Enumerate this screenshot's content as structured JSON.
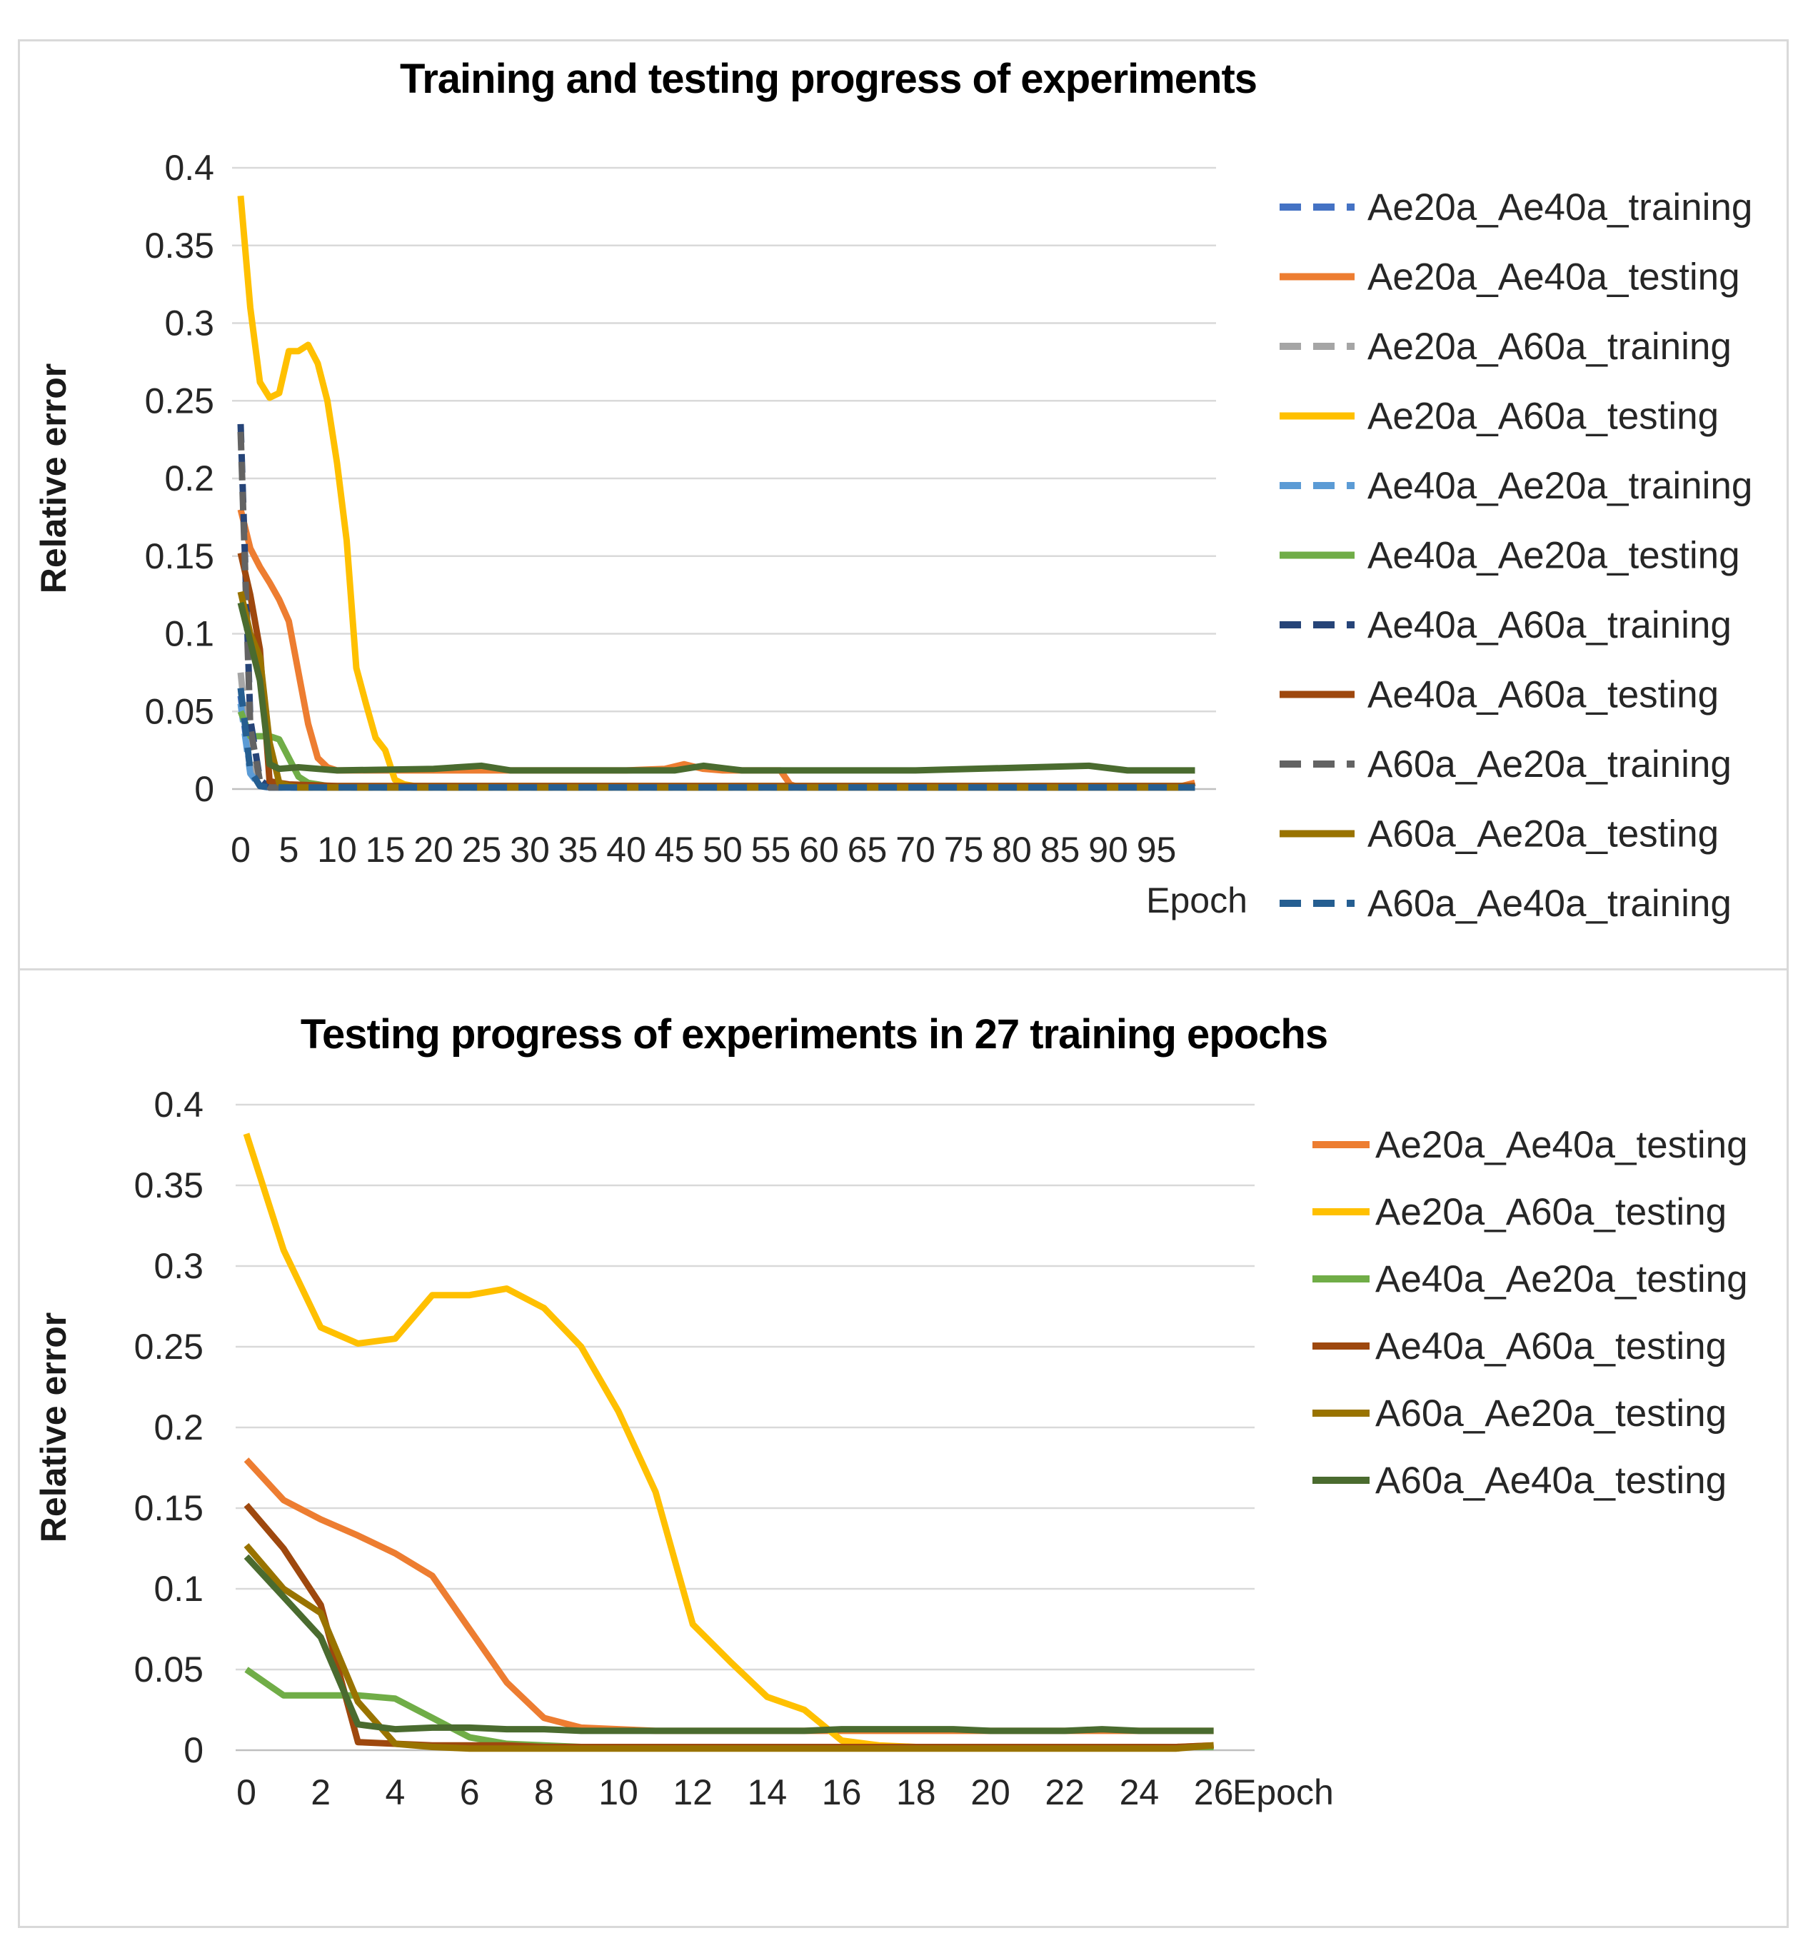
{
  "page": {
    "background": "#FFFFFF",
    "panel_border_color": "#D9D9D9",
    "gridline_color": "#D9D9D9",
    "axis_line_color": "#BFBFBF",
    "text_color": "#262626",
    "title_color": "#000000"
  },
  "chart_data": [
    {
      "type": "line",
      "title": "Training and testing progress of experiments",
      "xlabel": "Epoch",
      "ylabel": "Relative error",
      "xlim": [
        0,
        99
      ],
      "ylim": [
        0,
        0.4
      ],
      "grid": true,
      "legend_position": "right",
      "x_ticks": [
        0,
        5,
        10,
        15,
        20,
        25,
        30,
        35,
        40,
        45,
        50,
        55,
        60,
        65,
        70,
        75,
        80,
        85,
        90,
        95
      ],
      "y_ticks": [
        [
          0,
          "0"
        ],
        [
          0.05,
          "0.05"
        ],
        [
          0.1,
          "0.1"
        ],
        [
          0.15,
          "0.15"
        ],
        [
          0.2,
          "0.2"
        ],
        [
          0.25,
          "0.25"
        ],
        [
          0.3,
          "0.3"
        ],
        [
          0.35,
          "0.35"
        ],
        [
          0.4,
          "0.4"
        ]
      ],
      "series": [
        {
          "name": "Ae20a_Ae40a_training",
          "color": "#4472C4",
          "style": "dashed",
          "legend": true,
          "points": [
            [
              0,
              0.06
            ],
            [
              1,
              0.012
            ],
            [
              2,
              0.002
            ],
            [
              3,
              0.001
            ],
            [
              99,
              0.001
            ]
          ]
        },
        {
          "name": "Ae20a_Ae40a_testing",
          "color": "#ED7D31",
          "style": "solid",
          "legend": true,
          "points": [
            [
              0,
              0.18
            ],
            [
              1,
              0.155
            ],
            [
              2,
              0.143
            ],
            [
              3,
              0.133
            ],
            [
              4,
              0.122
            ],
            [
              5,
              0.108
            ],
            [
              6,
              0.075
            ],
            [
              7,
              0.042
            ],
            [
              8,
              0.02
            ],
            [
              9,
              0.014
            ],
            [
              10,
              0.012
            ],
            [
              20,
              0.012
            ],
            [
              30,
              0.012
            ],
            [
              40,
              0.012
            ],
            [
              44,
              0.013
            ],
            [
              46,
              0.016
            ],
            [
              48,
              0.013
            ],
            [
              50,
              0.012
            ],
            [
              56,
              0.012
            ],
            [
              57,
              0.003
            ],
            [
              58,
              0.001
            ],
            [
              97,
              0.001
            ],
            [
              99,
              0.004
            ]
          ]
        },
        {
          "name": "Ae20a_A60a_training",
          "color": "#A5A5A5",
          "style": "dashed",
          "legend": true,
          "points": [
            [
              0,
              0.075
            ],
            [
              1,
              0.015
            ],
            [
              2,
              0.003
            ],
            [
              3,
              0.001
            ],
            [
              99,
              0.001
            ]
          ]
        },
        {
          "name": "Ae20a_A60a_testing",
          "color": "#FFC000",
          "style": "solid",
          "legend": true,
          "points": [
            [
              0,
              0.382
            ],
            [
              1,
              0.31
            ],
            [
              2,
              0.262
            ],
            [
              3,
              0.252
            ],
            [
              4,
              0.255
            ],
            [
              5,
              0.282
            ],
            [
              6,
              0.282
            ],
            [
              7,
              0.286
            ],
            [
              8,
              0.274
            ],
            [
              9,
              0.25
            ],
            [
              10,
              0.21
            ],
            [
              11,
              0.16
            ],
            [
              12,
              0.078
            ],
            [
              13,
              0.055
            ],
            [
              14,
              0.033
            ],
            [
              15,
              0.025
            ],
            [
              16,
              0.006
            ],
            [
              17,
              0.003
            ],
            [
              18,
              0.002
            ],
            [
              40,
              0.002
            ],
            [
              70,
              0.002
            ],
            [
              99,
              0.002
            ]
          ]
        },
        {
          "name": "Ae40a_Ae20a_training",
          "color": "#5B9BD5",
          "style": "dashed",
          "legend": true,
          "points": [
            [
              0,
              0.055
            ],
            [
              1,
              0.01
            ],
            [
              2,
              0.002
            ],
            [
              3,
              0.001
            ],
            [
              99,
              0.001
            ]
          ]
        },
        {
          "name": "Ae40a_Ae20a_testing",
          "color": "#70AD47",
          "style": "solid",
          "legend": true,
          "points": [
            [
              0,
              0.05
            ],
            [
              1,
              0.034
            ],
            [
              2,
              0.034
            ],
            [
              3,
              0.034
            ],
            [
              4,
              0.032
            ],
            [
              5,
              0.02
            ],
            [
              6,
              0.008
            ],
            [
              7,
              0.004
            ],
            [
              8,
              0.003
            ],
            [
              9,
              0.002
            ],
            [
              26,
              0.002
            ],
            [
              99,
              0.002
            ]
          ]
        },
        {
          "name": "Ae40a_A60a_training",
          "color": "#264478",
          "style": "dashed",
          "legend": true,
          "points": [
            [
              0,
              0.235
            ],
            [
              1,
              0.045
            ],
            [
              2,
              0.006
            ],
            [
              3,
              0.001
            ],
            [
              99,
              0.001
            ]
          ]
        },
        {
          "name": "Ae40a_A60a_testing",
          "color": "#9E480E",
          "style": "solid",
          "legend": true,
          "points": [
            [
              0,
              0.152
            ],
            [
              1,
              0.125
            ],
            [
              2,
              0.09
            ],
            [
              3,
              0.005
            ],
            [
              4,
              0.004
            ],
            [
              5,
              0.003
            ],
            [
              10,
              0.002
            ],
            [
              26,
              0.002
            ],
            [
              99,
              0.002
            ]
          ]
        },
        {
          "name": "A60a_Ae20a_training",
          "color": "#636363",
          "style": "dashed",
          "legend": true,
          "points": [
            [
              0,
              0.23
            ],
            [
              1,
              0.04
            ],
            [
              2,
              0.005
            ],
            [
              3,
              0.001
            ],
            [
              99,
              0.001
            ]
          ]
        },
        {
          "name": "A60a_Ae20a_testing",
          "color": "#997300",
          "style": "solid",
          "legend": true,
          "points": [
            [
              0,
              0.127
            ],
            [
              1,
              0.1
            ],
            [
              2,
              0.085
            ],
            [
              3,
              0.03
            ],
            [
              4,
              0.004
            ],
            [
              5,
              0.002
            ],
            [
              6,
              0.001
            ],
            [
              26,
              0.001
            ],
            [
              99,
              0.001
            ]
          ]
        },
        {
          "name": "A60a_Ae40a_training",
          "color": "#255E91",
          "style": "dashed",
          "legend": true,
          "points": [
            [
              0,
              0.065
            ],
            [
              1,
              0.012
            ],
            [
              2,
              0.002
            ],
            [
              3,
              0.001
            ],
            [
              99,
              0.001
            ]
          ]
        },
        {
          "name": "A60a_Ae40a_testing",
          "color": "#4A6B2F",
          "style": "solid",
          "legend": false,
          "points": [
            [
              0,
              0.12
            ],
            [
              1,
              0.095
            ],
            [
              2,
              0.07
            ],
            [
              3,
              0.016
            ],
            [
              4,
              0.013
            ],
            [
              6,
              0.014
            ],
            [
              10,
              0.012
            ],
            [
              20,
              0.013
            ],
            [
              25,
              0.015
            ],
            [
              28,
              0.012
            ],
            [
              45,
              0.012
            ],
            [
              48,
              0.015
            ],
            [
              52,
              0.012
            ],
            [
              70,
              0.012
            ],
            [
              88,
              0.015
            ],
            [
              92,
              0.012
            ],
            [
              99,
              0.012
            ]
          ]
        }
      ]
    },
    {
      "type": "line",
      "title": "Testing progress of experiments in 27 training epochs",
      "xlabel": "Epoch",
      "ylabel": "Relative error",
      "xlim": [
        0,
        26
      ],
      "ylim": [
        0,
        0.4
      ],
      "grid": true,
      "legend_position": "right",
      "x_ticks": [
        0,
        2,
        4,
        6,
        8,
        10,
        12,
        14,
        16,
        18,
        20,
        22,
        24,
        26
      ],
      "y_ticks": [
        [
          0,
          "0"
        ],
        [
          0.05,
          "0.05"
        ],
        [
          0.1,
          "0.1"
        ],
        [
          0.15,
          "0.15"
        ],
        [
          0.2,
          "0.2"
        ],
        [
          0.25,
          "0.25"
        ],
        [
          0.3,
          "0.3"
        ],
        [
          0.35,
          "0.35"
        ],
        [
          0.4,
          "0.4"
        ]
      ],
      "x": [
        0,
        1,
        2,
        3,
        4,
        5,
        6,
        7,
        8,
        9,
        10,
        11,
        12,
        13,
        14,
        15,
        16,
        17,
        18,
        19,
        20,
        21,
        22,
        23,
        24,
        25,
        26
      ],
      "series": [
        {
          "name": "Ae20a_Ae40a_testing",
          "color": "#ED7D31",
          "style": "solid",
          "legend": true,
          "values": [
            0.18,
            0.155,
            0.143,
            0.133,
            0.122,
            0.108,
            0.075,
            0.042,
            0.02,
            0.014,
            0.013,
            0.012,
            0.012,
            0.012,
            0.012,
            0.012,
            0.012,
            0.012,
            0.012,
            0.012,
            0.012,
            0.012,
            0.012,
            0.012,
            0.012,
            0.012,
            0.012
          ]
        },
        {
          "name": "Ae20a_A60a_testing",
          "color": "#FFC000",
          "style": "solid",
          "legend": true,
          "values": [
            0.382,
            0.31,
            0.262,
            0.252,
            0.255,
            0.282,
            0.282,
            0.286,
            0.274,
            0.25,
            0.21,
            0.16,
            0.078,
            0.055,
            0.033,
            0.025,
            0.006,
            0.003,
            0.002,
            0.002,
            0.002,
            0.002,
            0.002,
            0.002,
            0.002,
            0.002,
            0.003
          ]
        },
        {
          "name": "Ae40a_Ae20a_testing",
          "color": "#70AD47",
          "style": "solid",
          "legend": true,
          "values": [
            0.05,
            0.034,
            0.034,
            0.034,
            0.032,
            0.02,
            0.008,
            0.004,
            0.003,
            0.002,
            0.002,
            0.002,
            0.002,
            0.002,
            0.002,
            0.002,
            0.002,
            0.002,
            0.002,
            0.002,
            0.002,
            0.002,
            0.002,
            0.002,
            0.002,
            0.002,
            0.002
          ]
        },
        {
          "name": "Ae40a_A60a_testing",
          "color": "#9E480E",
          "style": "solid",
          "legend": true,
          "values": [
            0.152,
            0.125,
            0.09,
            0.005,
            0.004,
            0.003,
            0.003,
            0.003,
            0.002,
            0.002,
            0.002,
            0.002,
            0.002,
            0.002,
            0.002,
            0.002,
            0.002,
            0.002,
            0.002,
            0.002,
            0.002,
            0.002,
            0.002,
            0.002,
            0.002,
            0.002,
            0.003
          ]
        },
        {
          "name": "A60a_Ae20a_testing",
          "color": "#997300",
          "style": "solid",
          "legend": true,
          "values": [
            0.127,
            0.1,
            0.085,
            0.03,
            0.004,
            0.002,
            0.001,
            0.001,
            0.001,
            0.001,
            0.001,
            0.001,
            0.001,
            0.001,
            0.001,
            0.001,
            0.001,
            0.001,
            0.001,
            0.001,
            0.001,
            0.001,
            0.001,
            0.001,
            0.001,
            0.001,
            0.003
          ]
        },
        {
          "name": "A60a_Ae40a_testing",
          "color": "#4A6B2F",
          "style": "solid",
          "legend": true,
          "values": [
            0.12,
            0.095,
            0.07,
            0.016,
            0.013,
            0.014,
            0.014,
            0.013,
            0.013,
            0.012,
            0.012,
            0.012,
            0.012,
            0.012,
            0.012,
            0.012,
            0.013,
            0.013,
            0.013,
            0.013,
            0.012,
            0.012,
            0.012,
            0.013,
            0.012,
            0.012,
            0.012
          ]
        }
      ]
    }
  ]
}
